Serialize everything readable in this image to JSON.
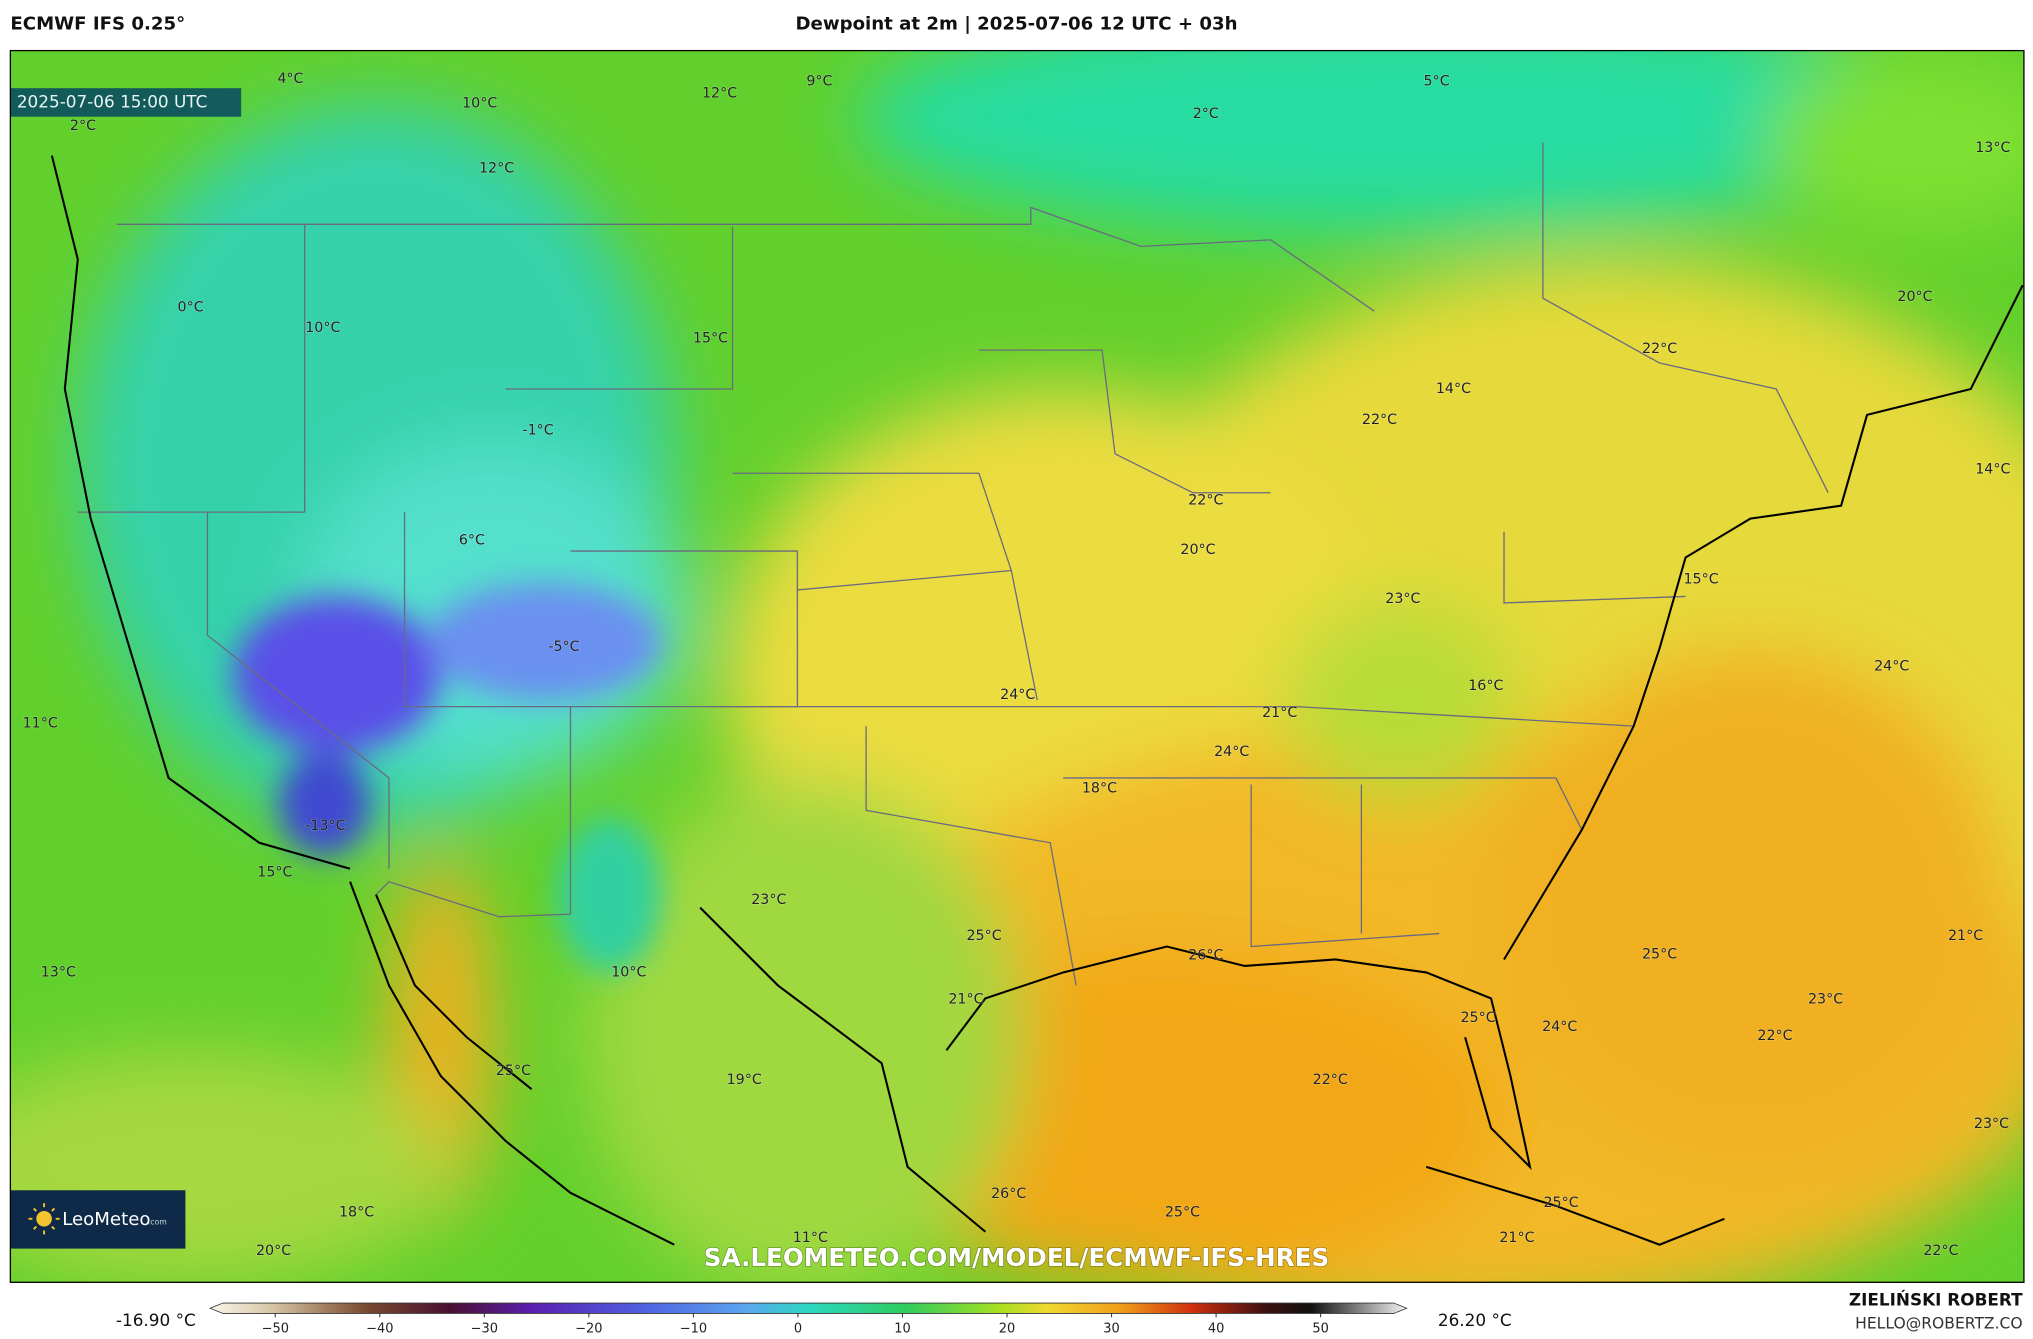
{
  "header": {
    "model": "ECMWF IFS 0.25°",
    "title": "Dewpoint at 2m | 2025-07-06 12 UTC + 03h",
    "valid_time": "2025-07-06 15:00 UTC"
  },
  "map": {
    "labels": [
      "4°C",
      "10°C",
      "12°C",
      "9°C",
      "2°C",
      "5°C",
      "13°C",
      "2°C",
      "12°C",
      "0°C",
      "10°C",
      "15°C",
      "20°C",
      "22°C",
      "14°C",
      "22°C",
      "-1°C",
      "14°C",
      "22°C",
      "6°C",
      "20°C",
      "15°C",
      "23°C",
      "-5°C",
      "24°C",
      "16°C",
      "24°C",
      "21°C",
      "11°C",
      "24°C",
      "18°C",
      "-13°C",
      "15°C",
      "23°C",
      "25°C",
      "21°C",
      "26°C",
      "25°C",
      "13°C",
      "10°C",
      "21°C",
      "23°C",
      "25°C",
      "24°C",
      "22°C",
      "25°C",
      "22°C",
      "19°C",
      "23°C",
      "26°C",
      "18°C",
      "25°C",
      "25°C",
      "11°C",
      "21°C",
      "20°C",
      "22°C"
    ],
    "watermark": "SA.LEOMETEO.COM/MODEL/ECMWF-IFS-HRES",
    "logo": "LeoMeteo",
    "logo_suffix": ".com"
  },
  "colorbar": {
    "min_label": "-16.90 °C",
    "max_label": "26.20 °C",
    "lim": [
      -55,
      57
    ],
    "ticks": [
      {
        "value": -50,
        "label": "−50"
      },
      {
        "value": -40,
        "label": "−40"
      },
      {
        "value": -30,
        "label": "−30"
      },
      {
        "value": -20,
        "label": "−20"
      },
      {
        "value": -10,
        "label": "−10"
      },
      0,
      10,
      20,
      30,
      40,
      50
    ]
  },
  "credits": {
    "author": "ZIELIŃSKI ROBERT",
    "email": "HELLO@ROBERTZ.CO"
  }
}
